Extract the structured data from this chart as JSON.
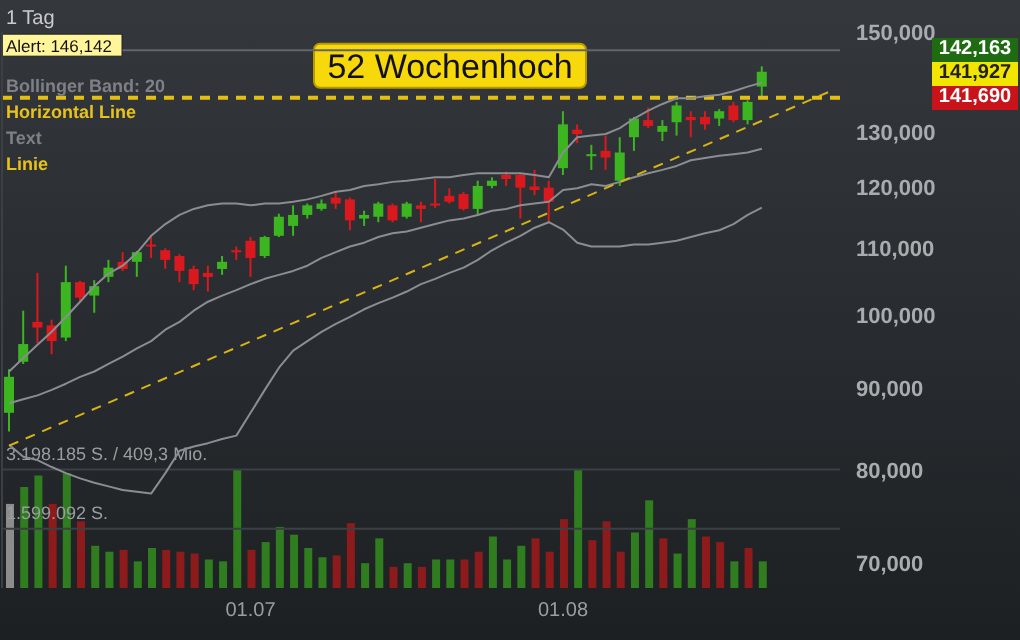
{
  "chart_data": {
    "type": "candlestick",
    "subtitle": "1 Tag",
    "categories": [
      null,
      null,
      null,
      null,
      null,
      null,
      null,
      null,
      null,
      null,
      null,
      null,
      null,
      null,
      null,
      null,
      null,
      "01.07",
      null,
      null,
      null,
      null,
      null,
      null,
      null,
      null,
      null,
      null,
      null,
      null,
      null,
      null,
      null,
      null,
      null,
      null,
      null,
      null,
      null,
      "01.08",
      null,
      null,
      null,
      null,
      null,
      null,
      null,
      null,
      null,
      null,
      null,
      null,
      null,
      null,
      null,
      null,
      null,
      null,
      null
    ],
    "series": [
      {
        "type": "bar",
        "axis": "y2",
        "values": [
          2270000,
          2730000,
          3040000,
          2270000,
          3100000,
          1800000,
          1140000,
          980000,
          1030000,
          720000,
          1080000,
          1030000,
          980000,
          930000,
          770000,
          720000,
          3200000,
          1030000,
          1240000,
          1650000,
          1440000,
          1080000,
          830000,
          880000,
          1750000,
          670000,
          1340000,
          570000,
          670000,
          570000,
          770000,
          770000,
          770000,
          980000,
          1390000,
          770000,
          1140000,
          1340000,
          980000,
          1860000,
          3200000,
          1290000,
          1800000,
          980000,
          1500000,
          2370000,
          1340000,
          930000,
          1860000,
          1390000,
          1240000,
          720000,
          1080000,
          720000,
          null,
          null,
          null,
          null,
          null
        ],
        "colors": [
          "#8c8c8c",
          "#2f7d1f",
          "#2f7d1f",
          "#8e1b1b",
          "#2f7d1f",
          "#8e1b1b",
          "#2f7d1f",
          "#2f7d1f",
          "#8e1b1b",
          "#2f7d1f",
          "#2f7d1f",
          "#8e1b1b",
          "#8e1b1b",
          "#8e1b1b",
          "#2f7d1f",
          "#2f7d1f",
          "#2f7d1f",
          "#8e1b1b",
          "#2f7d1f",
          "#2f7d1f",
          "#2f7d1f",
          "#2f7d1f",
          "#2f7d1f",
          "#8e1b1b",
          "#8e1b1b",
          "#2f7d1f",
          "#2f7d1f",
          "#8e1b1b",
          "#2f7d1f",
          "#8e1b1b",
          "#2f7d1f",
          "#2f7d1f",
          "#8e1b1b",
          "#8e1b1b",
          "#2f7d1f",
          "#2f7d1f",
          "#2f7d1f",
          "#8e1b1b",
          "#8e1b1b",
          "#8e1b1b",
          "#2f7d1f",
          "#8e1b1b",
          "#8e1b1b",
          "#8e1b1b",
          "#2f7d1f",
          "#2f7d1f",
          "#8e1b1b",
          "#2f7d1f",
          "#2f7d1f",
          "#8e1b1b",
          "#8e1b1b",
          "#2f7d1f",
          "#8e1b1b",
          "#2f7d1f",
          null,
          null,
          null,
          null,
          null
        ]
      },
      {
        "type": "line",
        "color": "#8a8d91",
        "values": [
          92200,
          94000,
          95800,
          97600,
          99700,
          101900,
          104200,
          106100,
          107300,
          109300,
          112000,
          113900,
          115400,
          116400,
          117000,
          117300,
          117300,
          117000,
          117300,
          117300,
          117600,
          118000,
          118600,
          119300,
          119600,
          120300,
          120600,
          121000,
          121200,
          121500,
          121800,
          121800,
          122200,
          122500,
          122500,
          122500,
          122500,
          122200,
          121800,
          126200,
          129000,
          129300,
          129600,
          130700,
          132500,
          134000,
          135300,
          136400,
          136400,
          136800,
          137100,
          137800,
          138700,
          139500,
          null,
          null,
          null,
          null,
          null
        ]
      },
      {
        "type": "line",
        "color": "#8a8d91",
        "values": [
          88100,
          88600,
          89100,
          89800,
          90600,
          91500,
          92200,
          93200,
          94200,
          95300,
          96300,
          97900,
          99000,
          100600,
          101900,
          102800,
          103600,
          104500,
          105300,
          105900,
          106500,
          107300,
          108500,
          109400,
          110300,
          110900,
          111800,
          112400,
          112700,
          113300,
          113900,
          114500,
          114800,
          115400,
          116100,
          116400,
          117000,
          117300,
          117600,
          119600,
          119900,
          120600,
          120300,
          121000,
          121800,
          122500,
          123100,
          123800,
          124800,
          125200,
          125600,
          125900,
          126200,
          126900,
          null,
          null,
          null,
          null,
          null
        ]
      },
      {
        "type": "line",
        "color": "#8a8d91",
        "values": [
          83000,
          81600,
          81200,
          80400,
          79700,
          79100,
          78600,
          78200,
          77800,
          77600,
          77400,
          79700,
          82300,
          82800,
          83200,
          83700,
          84100,
          86900,
          89800,
          92700,
          95000,
          96300,
          97600,
          98700,
          99700,
          100800,
          101700,
          102500,
          103400,
          104500,
          105300,
          106200,
          107000,
          108200,
          109700,
          110900,
          112000,
          113300,
          114200,
          113000,
          110900,
          110300,
          110300,
          110300,
          110600,
          110600,
          110900,
          111200,
          111800,
          112400,
          112900,
          113900,
          115400,
          116600,
          null,
          null,
          null,
          null,
          null
        ]
      },
      {
        "type": "line",
        "color": "#d8b413",
        "line_style": "dashed",
        "values": [
          82900,
          null,
          null,
          null,
          null,
          null,
          null,
          null,
          null,
          null,
          null,
          null,
          null,
          null,
          null,
          null,
          null,
          null,
          null,
          null,
          null,
          null,
          null,
          null,
          null,
          null,
          null,
          null,
          null,
          null,
          null,
          null,
          null,
          null,
          null,
          null,
          null,
          null,
          null,
          null,
          null,
          null,
          null,
          null,
          null,
          null,
          null,
          null,
          null,
          null,
          null,
          null,
          null,
          null,
          null,
          null,
          null,
          null,
          138000
        ]
      },
      {
        "colors": [
          "#3cb521",
          "#3cb521",
          "#d9191e",
          "#d9191e",
          "#3cb521",
          "#d9191e",
          "#3cb521",
          "#3cb521",
          "#d9191e",
          "#3cb521",
          "#d9191e",
          "#d9191e",
          "#d9191e",
          "#d9191e",
          "#d9191e",
          "#3cb521",
          "#d9191e",
          "#d9191e",
          "#3cb521",
          "#3cb521",
          "#3cb521",
          "#3cb521",
          "#3cb521",
          "#d9191e",
          "#d9191e",
          "#3cb521",
          "#3cb521",
          "#d9191e",
          "#3cb521",
          "#d9191e",
          "#d9191e",
          "#d9191e",
          "#d9191e",
          "#3cb521",
          "#3cb521",
          "#d9191e",
          "#d9191e",
          "#d9191e",
          "#d9191e",
          "#3cb521",
          "#d9191e",
          "#3cb521",
          "#d9191e",
          "#3cb521",
          "#3cb521",
          "#d9191e",
          "#3cb521",
          "#3cb521",
          "#d9191e",
          "#d9191e",
          "#3cb521",
          "#d9191e",
          "#3cb521",
          "#3cb521",
          null,
          null,
          null,
          null,
          null
        ],
        "ohlc": [
          [
            86900,
            92500,
            84600,
            91500
          ],
          [
            93500,
            100600,
            93200,
            95900
          ],
          [
            99000,
            106200,
            96000,
            98200
          ],
          [
            98500,
            99300,
            94500,
            96300
          ],
          [
            96800,
            107300,
            96300,
            104800
          ],
          [
            104800,
            105000,
            102000,
            102500
          ],
          [
            102800,
            105100,
            100300,
            104200
          ],
          [
            105600,
            108200,
            104800,
            107000
          ],
          [
            107900,
            109400,
            106500,
            106800
          ],
          [
            107900,
            109600,
            105600,
            109400
          ],
          [
            110600,
            112000,
            108500,
            110300
          ],
          [
            109700,
            110000,
            106800,
            108200
          ],
          [
            108800,
            109100,
            104800,
            106500
          ],
          [
            106800,
            107300,
            103600,
            104500
          ],
          [
            106200,
            107300,
            103400,
            105600
          ],
          [
            106800,
            108800,
            105900,
            107900
          ],
          [
            109700,
            110300,
            108200,
            109400
          ],
          [
            111200,
            111800,
            105600,
            108500
          ],
          [
            108800,
            112000,
            108500,
            111800
          ],
          [
            112000,
            115600,
            111800,
            115100
          ],
          [
            113600,
            117000,
            112000,
            115400
          ],
          [
            115400,
            117300,
            114800,
            117000
          ],
          [
            116400,
            118000,
            116100,
            117300
          ],
          [
            118300,
            119300,
            116400,
            117300
          ],
          [
            118000,
            118300,
            112900,
            114500
          ],
          [
            114800,
            116100,
            113600,
            115400
          ],
          [
            115100,
            117600,
            114200,
            117300
          ],
          [
            117000,
            117300,
            114200,
            114500
          ],
          [
            115100,
            117600,
            114800,
            117300
          ],
          [
            117000,
            117600,
            114200,
            116400
          ],
          [
            117300,
            121500,
            116600,
            117000
          ],
          [
            118600,
            119900,
            117300,
            117600
          ],
          [
            118900,
            119300,
            116100,
            116400
          ],
          [
            116400,
            121200,
            115400,
            120300
          ],
          [
            120300,
            121800,
            119900,
            121200
          ],
          [
            122200,
            122800,
            120300,
            121500
          ],
          [
            122200,
            122500,
            114800,
            120000
          ],
          [
            120200,
            123100,
            118700,
            119600
          ],
          [
            120000,
            121200,
            114200,
            117600
          ],
          [
            123400,
            133900,
            122200,
            131400
          ],
          [
            130400,
            131400,
            127900,
            129600
          ],
          [
            125600,
            127600,
            123100,
            125900
          ],
          [
            126500,
            129300,
            123100,
            125300
          ],
          [
            121200,
            129000,
            120300,
            126200
          ],
          [
            129000,
            132800,
            126500,
            132500
          ],
          [
            132200,
            134600,
            130700,
            131100
          ],
          [
            130000,
            132200,
            128300,
            131100
          ],
          [
            131800,
            135700,
            129300,
            135000
          ],
          [
            132800,
            133900,
            129000,
            132200
          ],
          [
            132800,
            133900,
            130400,
            131400
          ],
          [
            132500,
            134300,
            131100,
            133900
          ],
          [
            135000,
            135700,
            131800,
            132200
          ],
          [
            132200,
            136000,
            131400,
            135700
          ],
          [
            138700,
            142800,
            136800,
            141690
          ],
          null,
          null,
          null,
          null,
          null
        ]
      }
    ],
    "log": true,
    "ylim": [
      67600,
      150000
    ],
    "yticks": [
      {
        "value": 70000,
        "label": "70,000"
      },
      {
        "value": 80000,
        "label": "80,000"
      },
      {
        "value": 90000,
        "label": "90,000"
      },
      {
        "value": 100000,
        "label": "100,000"
      },
      {
        "value": 110000,
        "label": "110,000"
      },
      {
        "value": 120000,
        "label": "120,000"
      },
      {
        "value": 130000,
        "label": "130,000"
      },
      {
        "value": 150000,
        "label": "150,000"
      }
    ],
    "y2lim": [
      0,
      15010000
    ],
    "ref_lines": [
      {
        "axis": "y",
        "value": 136500,
        "label": "52 Wochenhoch",
        "color": "#e3bf14",
        "line_style": "dashed"
      },
      {
        "axis": "y",
        "value": 146142,
        "label": "Alert: 146,142",
        "color": "#62666b"
      },
      {
        "axis": "y2",
        "value": 3198185,
        "label": "3.198.185 S. / 409,3 Mio.",
        "color": "#3b4045"
      },
      {
        "axis": "y2",
        "value": 1599092,
        "label": "1.599.092 S.",
        "color": "#3b4045"
      }
    ],
    "annotations": [
      "Bollinger Band: 20",
      "Horizontal Line",
      "Text",
      "Linie",
      "142,163",
      "141,927",
      "141,690"
    ]
  }
}
